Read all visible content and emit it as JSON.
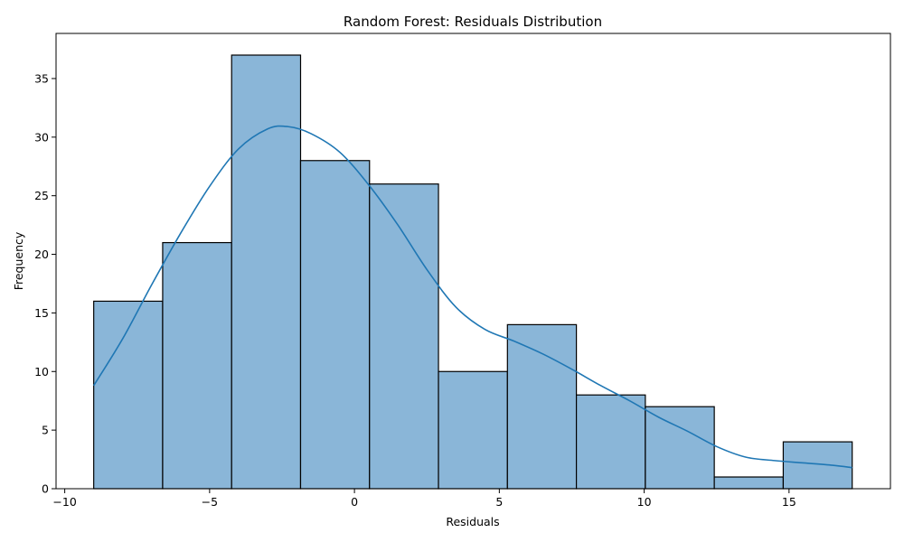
{
  "chart_data": {
    "type": "bar",
    "subtype": "histogram",
    "title": "Random Forest: Residuals Distribution",
    "xlabel": "Residuals",
    "ylabel": "Frequency",
    "xlim": [
      -10.3,
      18.5
    ],
    "ylim": [
      0,
      38.85
    ],
    "xticks": [
      -10,
      -5,
      0,
      5,
      10,
      15
    ],
    "yticks": [
      0,
      5,
      10,
      15,
      20,
      25,
      30,
      35
    ],
    "bins": [
      {
        "x0": -9.0,
        "x1": -6.62,
        "count": 16
      },
      {
        "x0": -6.62,
        "x1": -4.24,
        "count": 21
      },
      {
        "x0": -4.24,
        "x1": -1.86,
        "count": 37
      },
      {
        "x0": -1.86,
        "x1": 0.52,
        "count": 28
      },
      {
        "x0": 0.52,
        "x1": 2.9,
        "count": 26
      },
      {
        "x0": 2.9,
        "x1": 5.28,
        "count": 10
      },
      {
        "x0": 5.28,
        "x1": 7.66,
        "count": 14
      },
      {
        "x0": 7.66,
        "x1": 10.04,
        "count": 8
      },
      {
        "x0": 10.04,
        "x1": 12.42,
        "count": 7
      },
      {
        "x0": 12.42,
        "x1": 14.8,
        "count": 1
      },
      {
        "x0": 14.8,
        "x1": 17.18,
        "count": 4
      }
    ],
    "kde_curve": {
      "x": [
        -9.0,
        -8.0,
        -7.0,
        -6.0,
        -5.0,
        -4.0,
        -3.0,
        -2.3,
        -1.5,
        -0.5,
        0.5,
        1.5,
        2.5,
        3.5,
        4.5,
        5.5,
        6.5,
        7.5,
        8.5,
        9.5,
        10.5,
        11.5,
        12.5,
        13.5,
        14.5,
        15.5,
        16.5,
        17.18
      ],
      "y": [
        8.8,
        12.8,
        17.4,
        21.8,
        25.8,
        29.0,
        30.7,
        30.9,
        30.3,
        28.7,
        25.9,
        22.5,
        18.7,
        15.5,
        13.6,
        12.6,
        11.5,
        10.2,
        8.8,
        7.5,
        6.1,
        4.9,
        3.6,
        2.7,
        2.4,
        2.2,
        2.0,
        1.8
      ]
    },
    "grid": false,
    "legend": "none",
    "colors": {
      "bar_fill": "#8ab6d8",
      "bar_edge": "#000000",
      "kde_line": "#1f77b4",
      "axes": "#000000"
    }
  }
}
